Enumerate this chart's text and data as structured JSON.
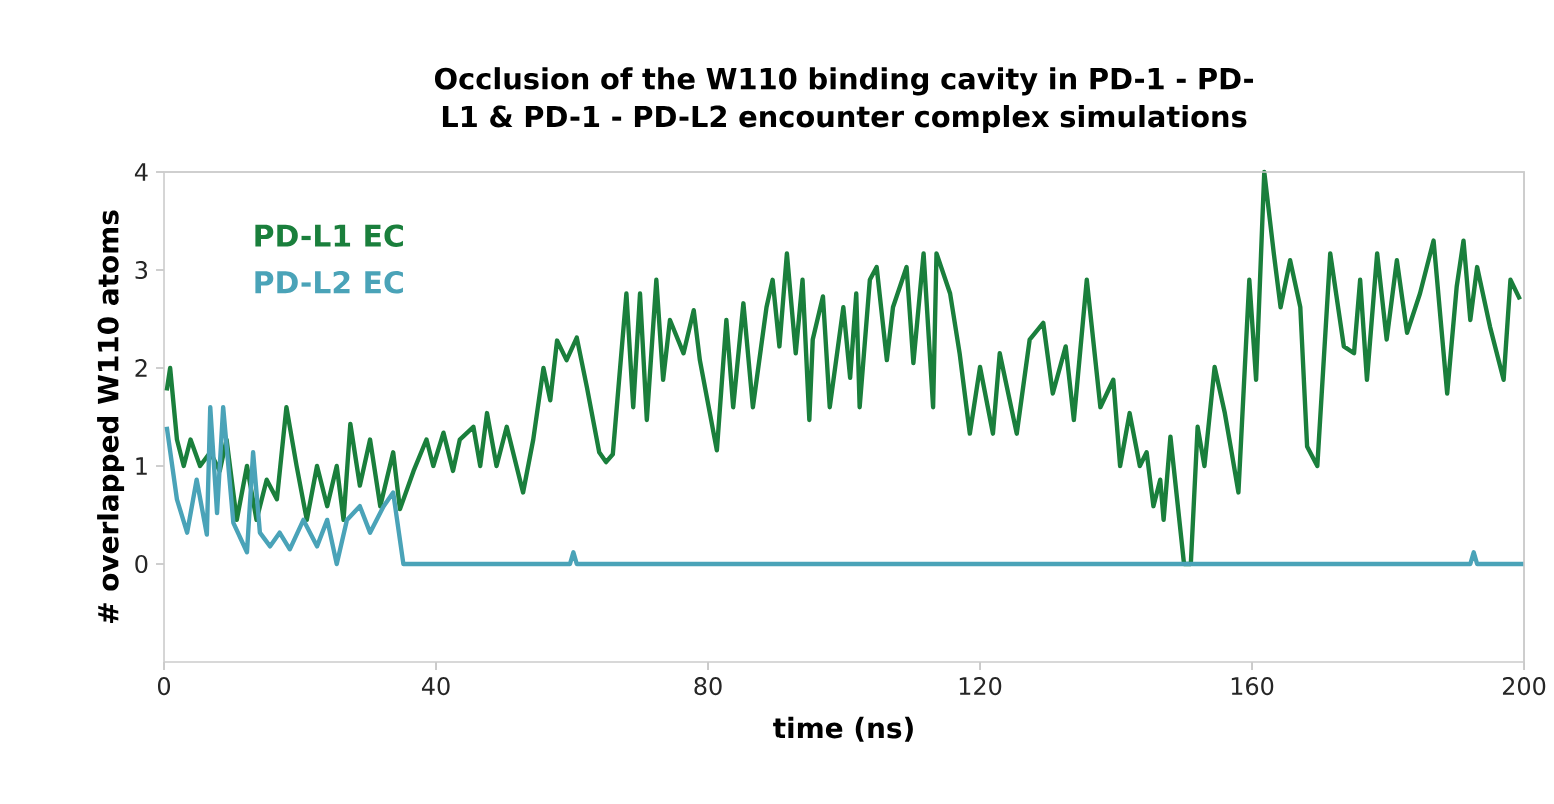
{
  "chart_data": {
    "type": "line",
    "title": "Occlusion of the W110 binding cavity in PD-1 - PD-L1 & PD-1 - PD-L2 encounter complex simulations",
    "xlabel": "time (ns)",
    "ylabel": "# overlapped W110 atoms",
    "xlim": [
      0,
      200
    ],
    "xticks": [
      0,
      40,
      80,
      120,
      160,
      200
    ],
    "ylim": [
      -1,
      4
    ],
    "yticks": [
      0,
      1,
      2,
      3,
      4
    ],
    "legend": "top left",
    "grid": false,
    "series": [
      {
        "name": "PD-L1 EC",
        "color": "#1a7f3c",
        "x": [
          0.4,
          0.9,
          1.9,
          2.9,
          3.9,
          5.3,
          6.8,
          8.2,
          9.2,
          10.7,
          12.2,
          13.6,
          15.1,
          16.6,
          18,
          19.5,
          21,
          22.5,
          24,
          25.4,
          26.4,
          27.4,
          28.8,
          30.3,
          31.8,
          33.7,
          34.7,
          36.7,
          38.6,
          39.6,
          41.1,
          42.5,
          43.5,
          45.5,
          46.5,
          47.5,
          48.9,
          50.4,
          52.8,
          54.3,
          55.8,
          56.8,
          57.8,
          59.2,
          60.7,
          62.2,
          64,
          65,
          66,
          68,
          69,
          70,
          71,
          72.4,
          73.4,
          74.4,
          76.4,
          77.9,
          78.8,
          81.3,
          82.7,
          83.7,
          85.2,
          86.6,
          88.6,
          89.5,
          90.5,
          91.6,
          92.9,
          93.9,
          94.9,
          95.4,
          96.9,
          97.9,
          99.9,
          100.9,
          101.8,
          102.3,
          103.8,
          104.8,
          106.3,
          107.2,
          109.2,
          110.2,
          111.7,
          113.1,
          113.6,
          115.6,
          117,
          118.5,
          120,
          121.9,
          122.9,
          125.4,
          127.3,
          129.3,
          130.7,
          132.6,
          133.8,
          135.7,
          137.7,
          139.6,
          140.6,
          142,
          143.5,
          144.5,
          145.5,
          146.5,
          147,
          148,
          150,
          151,
          152,
          153,
          154.5,
          156,
          157,
          158,
          159.6,
          160.6,
          161.8,
          163.2,
          164.2,
          165.6,
          167.1,
          168.1,
          169.6,
          171.5,
          173.5,
          175,
          175.9,
          176.9,
          178.4,
          179.8,
          181.3,
          182.8,
          184.7,
          186.7,
          188.7,
          190.1,
          191.1,
          192.1,
          193.1,
          195,
          197,
          198,
          199.4
        ],
        "values": [
          1.77,
          2.0,
          1.27,
          1.0,
          1.27,
          1.0,
          1.14,
          0.95,
          1.27,
          0.45,
          1.0,
          0.45,
          0.86,
          0.66,
          1.6,
          1.0,
          0.45,
          1.0,
          0.59,
          1.0,
          0.45,
          1.43,
          0.8,
          1.27,
          0.59,
          1.14,
          0.56,
          0.95,
          1.27,
          1.0,
          1.34,
          0.95,
          1.27,
          1.4,
          1.0,
          1.54,
          1.0,
          1.4,
          0.73,
          1.27,
          2.0,
          1.67,
          2.28,
          2.08,
          2.31,
          1.8,
          1.14,
          1.04,
          1.12,
          2.76,
          1.6,
          2.76,
          1.47,
          2.9,
          1.88,
          2.49,
          2.15,
          2.59,
          2.08,
          1.16,
          2.49,
          1.6,
          2.66,
          1.6,
          2.62,
          2.9,
          2.22,
          3.17,
          2.15,
          2.9,
          1.47,
          2.29,
          2.73,
          1.6,
          2.62,
          1.9,
          2.76,
          1.6,
          2.9,
          3.03,
          2.08,
          2.62,
          3.03,
          2.05,
          3.17,
          1.6,
          3.17,
          2.76,
          2.15,
          1.33,
          2.01,
          1.33,
          2.15,
          1.33,
          2.29,
          2.46,
          1.74,
          2.22,
          1.47,
          2.9,
          1.6,
          1.88,
          1.0,
          1.54,
          1.0,
          1.14,
          0.59,
          0.86,
          0.45,
          1.3,
          0,
          0,
          1.4,
          1.0,
          2.01,
          1.54,
          1.14,
          0.73,
          2.9,
          1.88,
          4.0,
          3.17,
          2.62,
          3.1,
          2.62,
          1.2,
          1.0,
          3.17,
          2.22,
          2.15,
          2.9,
          1.88,
          3.17,
          2.29,
          3.1,
          2.36,
          2.76,
          3.3,
          1.74,
          2.83,
          3.3,
          2.49,
          3.03,
          2.42,
          1.88,
          2.9,
          2.7
        ]
      },
      {
        "name": "PD-L2 EC",
        "color": "#4aa3b8",
        "x": [
          0.4,
          1.9,
          3.4,
          4.8,
          6.3,
          6.8,
          7.8,
          8.7,
          10.2,
          12.2,
          13.1,
          14.1,
          15.6,
          17,
          18.5,
          20.5,
          22.5,
          24,
          25.4,
          26.9,
          28.8,
          30.3,
          32.3,
          33.7,
          35.2,
          59.7,
          60.2,
          60.7,
          192.1,
          192.6,
          193.1,
          200
        ],
        "values": [
          1.4,
          0.66,
          0.32,
          0.86,
          0.3,
          1.6,
          0.52,
          1.6,
          0.42,
          0.12,
          1.14,
          0.32,
          0.18,
          0.32,
          0.15,
          0.45,
          0.18,
          0.45,
          0,
          0.45,
          0.59,
          0.32,
          0.59,
          0.73,
          0,
          0,
          0.12,
          0,
          0,
          0.12,
          0,
          0
        ]
      }
    ]
  }
}
